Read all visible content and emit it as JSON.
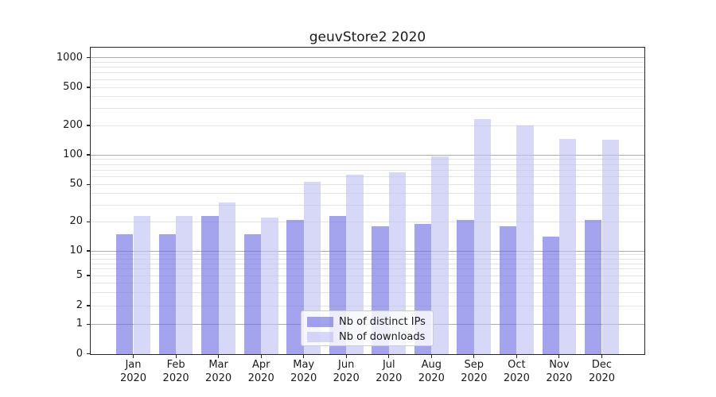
{
  "title": "geuvStore2 2020",
  "legend": {
    "items": [
      {
        "label": "Nb of distinct IPs"
      },
      {
        "label": "Nb of downloads"
      }
    ]
  },
  "colors": {
    "distinct_ips_fill": "rgba(106,106,228,0.62)",
    "distinct_ips_solid": "#a5a5ef",
    "downloads_fill": "rgba(190,190,243,0.62)",
    "downloads_solid": "#d7d7fa",
    "grid_major": "#ababab",
    "grid_minor": "#e4e4e4",
    "spine": "#262626",
    "legend_border": "#cccccc"
  },
  "chart_data": {
    "type": "bar",
    "title": "geuvStore2 2020",
    "categories": [
      "Jan 2020",
      "Feb 2020",
      "Mar 2020",
      "Apr 2020",
      "May 2020",
      "Jun 2020",
      "Jul 2020",
      "Aug 2020",
      "Sep 2020",
      "Oct 2020",
      "Nov 2020",
      "Dec 2020"
    ],
    "x_tick_months": [
      "Jan",
      "Feb",
      "Mar",
      "Apr",
      "May",
      "Jun",
      "Jul",
      "Aug",
      "Sep",
      "Oct",
      "Nov",
      "Dec"
    ],
    "x_tick_year": "2020",
    "series": [
      {
        "name": "Nb of distinct IPs",
        "fill_rgba": "rgba(106,106,228,0.62)",
        "values": [
          15,
          15,
          23,
          15,
          21,
          23,
          18,
          19,
          21,
          18,
          14,
          21
        ]
      },
      {
        "name": "Nb of downloads",
        "fill_rgba": "rgba(190,190,243,0.62)",
        "values": [
          23,
          23,
          32,
          22,
          53,
          63,
          67,
          96,
          233,
          199,
          146,
          142
        ]
      }
    ],
    "xlabel": "",
    "ylabel": "",
    "y_axis": {
      "scale": "log-like with 1-2-5 ticks, 0 baseline",
      "ticks": [
        0,
        1,
        2,
        5,
        10,
        20,
        50,
        100,
        200,
        500,
        1000
      ],
      "ylim": [
        0,
        1300
      ]
    },
    "grid": {
      "horizontal": true,
      "major_at": [
        1,
        10,
        100,
        1000
      ],
      "minor_log_subdivisions": true
    },
    "legend_position": "lower center, inside plot"
  }
}
